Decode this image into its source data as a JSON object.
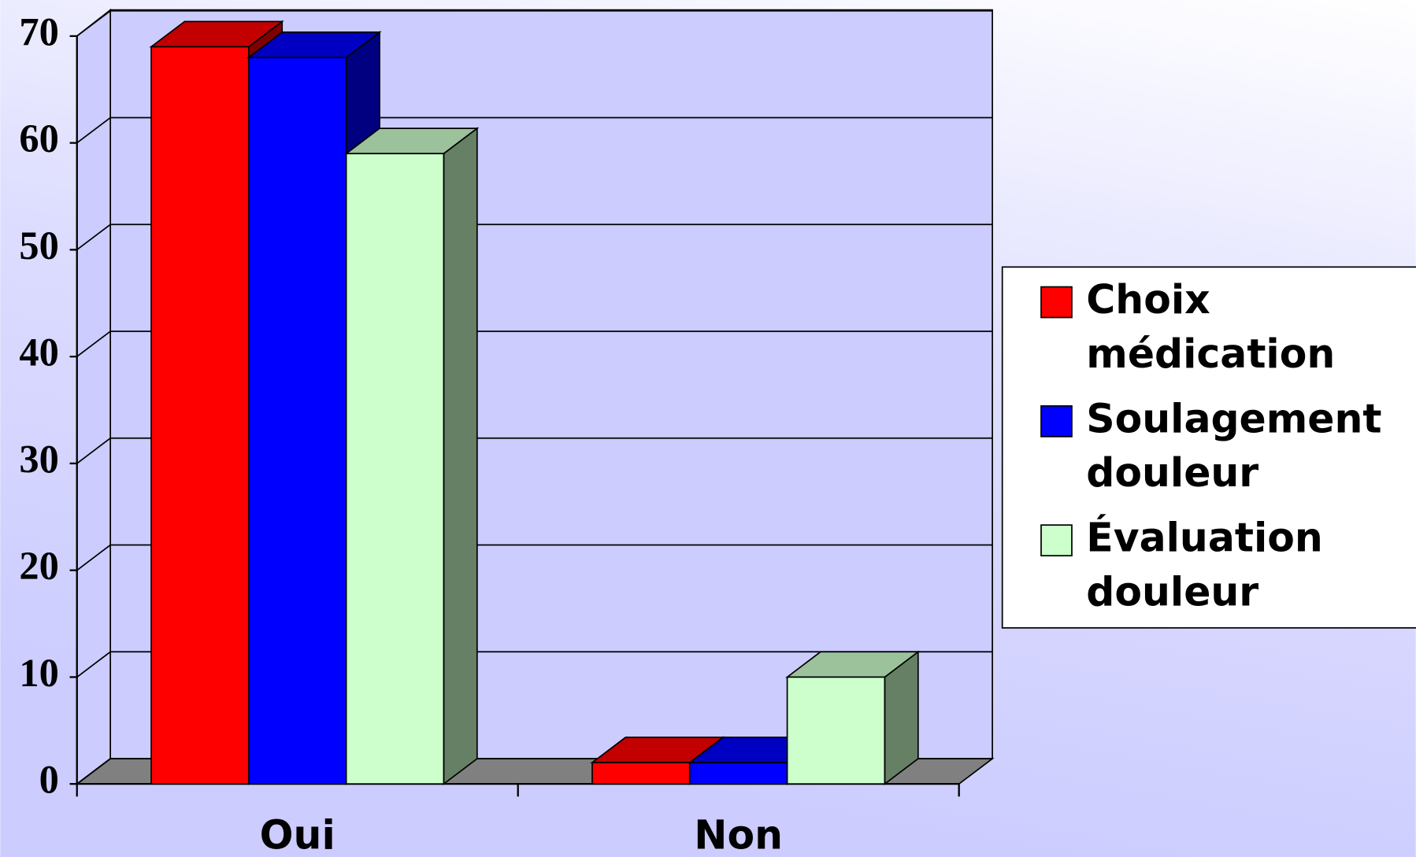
{
  "chart_data": {
    "type": "bar3d",
    "categories": [
      "Oui",
      "Non"
    ],
    "series": [
      {
        "name": "Choix médication",
        "color": "#ff0000",
        "values": [
          69,
          2
        ]
      },
      {
        "name": "Soulagement douleur",
        "color": "#0000ff",
        "values": [
          68,
          2
        ]
      },
      {
        "name": "Évaluation douleur",
        "color": "#ccffcc",
        "values": [
          59,
          10
        ]
      }
    ],
    "ylim": [
      0,
      70
    ],
    "yticks": [
      0,
      10,
      20,
      30,
      40,
      50,
      60,
      70
    ],
    "grid": true,
    "legend": "right"
  }
}
